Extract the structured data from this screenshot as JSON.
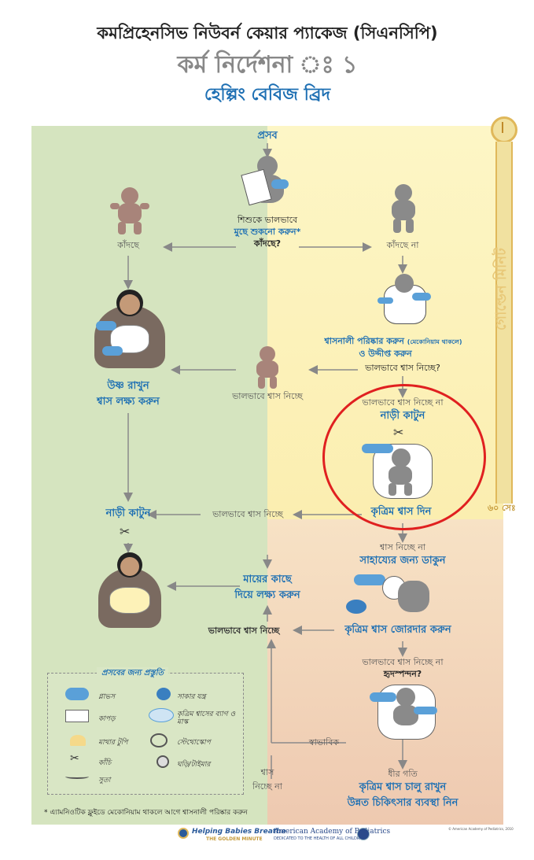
{
  "header": {
    "title": "কমপ্রিহেনসিভ নিউবর্ন কেয়ার প্যাকেজ (সিএনসিপি)",
    "subtitle": "কর্ম নির্দেশনা ঃ ১",
    "program": "হেল্পিং বেবিজ ব্রিদ"
  },
  "timeline": {
    "label": "গোল্ডেন মিনিট",
    "end_label": "৬০ সেঃ"
  },
  "flow": {
    "birth": "প্রসব",
    "dry_line1": "শিশুকে ভালভাবে",
    "dry_line2": "মুছে শুকনো করুন*",
    "crying_q": "কাঁদছে?",
    "crying": "কাঁদছে",
    "not_crying": "কাঁদছে না",
    "warm": "উষ্ণ রাখুন",
    "observe_breathing": "শ্বাস লক্ষ্য করুন",
    "clear_airway": "শ্বাসনালী পরিষ্কার করুন",
    "meconium_note": "(মেকোনিয়াম থাকলে)",
    "stimulate": "ও উদ্দীপ্ত করুন",
    "breathing_well_q": "ভালভাবে শ্বাস নিচ্ছে?",
    "breathing_well": "ভালভাবে শ্বাস নিচ্ছে",
    "not_breathing_well": "ভালভাবে শ্বাস নিচ্ছে না",
    "cut_cord": "নাড়ী কাটুন",
    "ventilate": "কৃত্রিম শ্বাস দিন",
    "cut_cord_left": "নাড়ী কাটুন",
    "breathing_well_2": "ভালভাবে শ্বাস নিচ্ছে",
    "not_breathing": "শ্বাস নিচ্ছে না",
    "call_help": "সাহায্যের জন্য ডাকুন",
    "with_mother_1": "মায়ের কাছে",
    "with_mother_2": "দিয়ে লক্ষ্য করুন",
    "breathing_well_3": "ভালভাবে শ্বাস নিচ্ছে",
    "improve_ventilation": "কৃত্রিম শ্বাস জোরদার করুন",
    "not_breathing_well_2": "ভালভাবে শ্বাস নিচ্ছে না",
    "heart_rate_q": "হৃদস্পন্দন?",
    "normal": "স্বাভাবিক",
    "breathing_1": "শ্বাস",
    "breathing_2": "নিচ্ছে না",
    "slow": "ধীর গতি",
    "continue_vent": "কৃত্রিম শ্বাস চালু রাখুন",
    "advanced_care": "উন্নত চিকিৎসার ব্যবস্থা নিন"
  },
  "legend": {
    "title": "প্রসবের জন্য প্রস্তুতি",
    "items": [
      {
        "label": "গ্লাভস"
      },
      {
        "label": "সাকার যন্ত্র"
      },
      {
        "label": "কাপড়"
      },
      {
        "label": "কৃত্রিম শ্বাসের ব্যাগ ও মাস্ক"
      },
      {
        "label": "মাথার টুপি"
      },
      {
        "label": "স্টেথোস্কোপ"
      },
      {
        "label": "কাঁচি"
      },
      {
        "label": "ঘড়ি/টাইমার"
      },
      {
        "label": "সুতা"
      }
    ]
  },
  "footnote": "* এ্যামনিওটিক ফ্লুইডে মেকোনিয়াম থাকলে আগে শ্বাসনালী পরিষ্কার করুন",
  "footer": {
    "hbb": "Helping Babies Breathe",
    "hbb_tag": "THE GOLDEN MINUTE",
    "aap": "American Academy of Pediatrics",
    "aap_tag": "DEDICATED TO THE HEALTH OF ALL CHILDREN",
    "copyright": "© American Academy of Pediatrics, 2010"
  },
  "colors": {
    "green_zone": "#d5e4bf",
    "yellow_zone": "#fdf2b8",
    "peach_zone": "#f2d5b8",
    "accent_blue": "#1d6fb3",
    "highlight_red": "#e02020"
  }
}
